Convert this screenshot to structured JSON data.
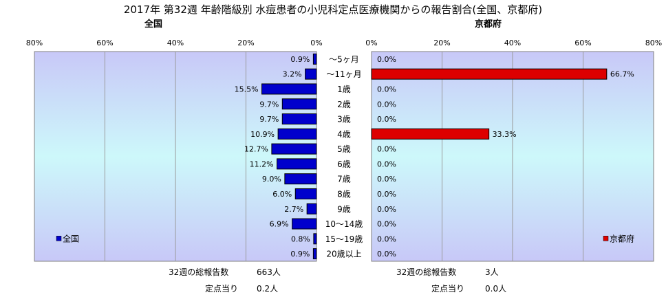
{
  "title": "2017年 第32週 年齢階級別 水痘患者の小児科定点医療機関からの報告割合(全国、京都府)",
  "chart_data": {
    "type": "bar",
    "categories": [
      "～5ヶ月",
      "～11ヶ月",
      "1歳",
      "2歳",
      "3歳",
      "4歳",
      "5歳",
      "6歳",
      "7歳",
      "8歳",
      "9歳",
      "10～14歳",
      "15～19歳",
      "20歳以上"
    ],
    "xlim": [
      0,
      80
    ],
    "ticks": [
      "0%",
      "20%",
      "40%",
      "60%",
      "80%"
    ],
    "grid": true,
    "series": [
      {
        "name": "全国",
        "panel_title": "全国",
        "color": "#0000cc",
        "values": [
          0.9,
          3.2,
          15.5,
          9.7,
          9.7,
          10.9,
          12.7,
          11.2,
          9.0,
          6.0,
          2.7,
          6.9,
          0.8,
          0.9
        ],
        "labels": [
          "0.9%",
          "3.2%",
          "15.5%",
          "9.7%",
          "9.7%",
          "10.9%",
          "12.7%",
          "11.2%",
          "9.0%",
          "6.0%",
          "2.7%",
          "6.9%",
          "0.8%",
          "0.9%"
        ],
        "legend_position": "bottom-left"
      },
      {
        "name": "京都府",
        "panel_title": "京都府",
        "color": "#dd0000",
        "values": [
          0,
          66.7,
          0,
          0,
          0,
          33.3,
          0,
          0,
          0,
          0,
          0,
          0,
          0,
          0
        ],
        "labels": [
          "0.0%",
          "66.7%",
          "0.0%",
          "0.0%",
          "0.0%",
          "33.3%",
          "0.0%",
          "0.0%",
          "0.0%",
          "0.0%",
          "0.0%",
          "0.0%",
          "0.0%",
          "0.0%"
        ],
        "legend_position": "bottom-right"
      }
    ]
  },
  "footer": {
    "national": {
      "total_label": "32週の総報告数",
      "total_value": "663人",
      "per_label": "定点当り",
      "per_value": "0.2人"
    },
    "kyoto": {
      "total_label": "32週の総報告数",
      "total_value": "3人",
      "per_label": "定点当り",
      "per_value": "0.0人"
    }
  }
}
